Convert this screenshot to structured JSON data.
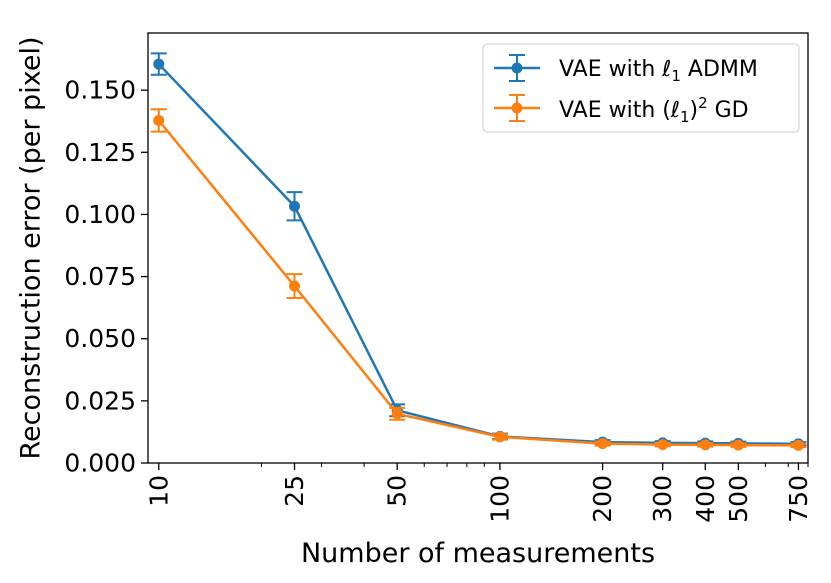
{
  "chart_data": {
    "type": "line",
    "xscale": "log",
    "title": "",
    "xlabel": "Number of measurements",
    "ylabel": "Reconstruction error (per pixel)",
    "x": [
      10,
      25,
      50,
      100,
      200,
      300,
      400,
      500,
      750
    ],
    "xtick_labels": [
      "10",
      "25",
      "50",
      "100",
      "200",
      "300",
      "400",
      "500",
      "750"
    ],
    "xlim": [
      9.3,
      800
    ],
    "ylim": [
      0,
      0.173
    ],
    "yticks": [
      0.0,
      0.025,
      0.05,
      0.075,
      0.1,
      0.125,
      0.15
    ],
    "ytick_labels": [
      "0.000",
      "0.025",
      "0.050",
      "0.075",
      "0.100",
      "0.125",
      "0.150"
    ],
    "legend_position": "top-right",
    "series": [
      {
        "name": "VAE with ℓ1 ADMM",
        "legend_prefix": "VAE with ",
        "legend_symbol": "ℓ",
        "legend_sub": "1",
        "legend_suffix": " ADMM",
        "color": "#1f77b4",
        "values": [
          0.1605,
          0.1033,
          0.0212,
          0.0107,
          0.0084,
          0.0081,
          0.008,
          0.0079,
          0.0077
        ],
        "errors": [
          0.0043,
          0.0057,
          0.0024,
          0.0011,
          0.0008,
          0.0007,
          0.0007,
          0.0007,
          0.0007
        ]
      },
      {
        "name": "VAE with (ℓ1)^2 GD",
        "legend_prefix": "VAE with (",
        "legend_symbol": "ℓ",
        "legend_sub": "1",
        "legend_close": ")",
        "legend_sup": "2",
        "legend_suffix": " GD",
        "color": "#ff7f0e",
        "values": [
          0.1378,
          0.0712,
          0.0198,
          0.0105,
          0.0078,
          0.0074,
          0.0073,
          0.0072,
          0.0071
        ],
        "errors": [
          0.0045,
          0.0048,
          0.0024,
          0.0011,
          0.0008,
          0.0007,
          0.0007,
          0.0007,
          0.0007
        ]
      }
    ]
  }
}
